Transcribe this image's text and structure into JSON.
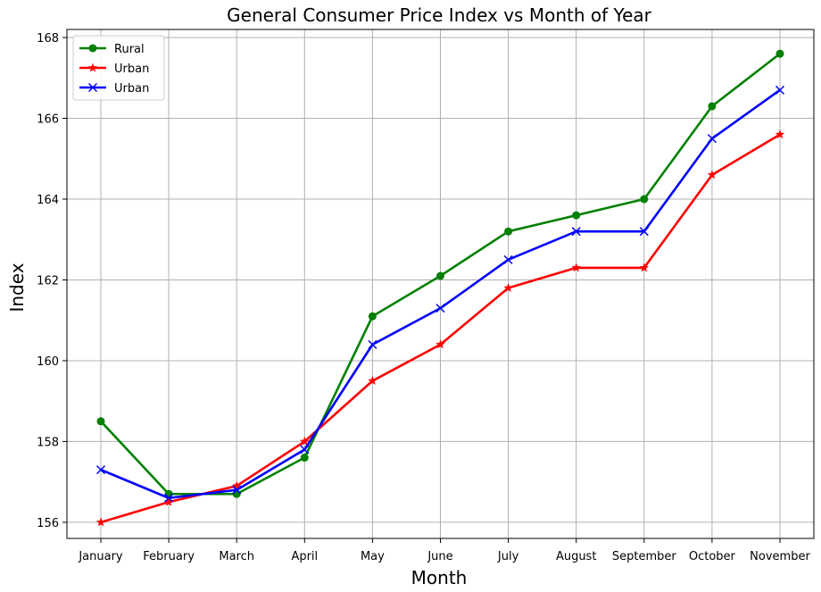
{
  "chart_data": {
    "type": "line",
    "title": "General Consumer Price Index vs Month of Year",
    "xlabel": "Month",
    "ylabel": "Index",
    "categories": [
      "January",
      "February",
      "March",
      "April",
      "May",
      "June",
      "July",
      "August",
      "September",
      "October",
      "November"
    ],
    "ylim": [
      155.6,
      168.2
    ],
    "yticks": [
      156,
      158,
      160,
      162,
      164,
      166,
      168
    ],
    "grid": true,
    "legend_position": "upper-left",
    "series": [
      {
        "name": "Rural",
        "color": "#008000",
        "marker": "circle",
        "values": [
          158.5,
          156.7,
          156.7,
          157.6,
          161.1,
          162.1,
          163.2,
          163.6,
          164.0,
          166.3,
          167.6
        ]
      },
      {
        "name": "Urban",
        "color": "#ff0000",
        "marker": "star",
        "values": [
          156.0,
          156.5,
          156.9,
          158.0,
          159.5,
          160.4,
          161.8,
          162.3,
          162.3,
          164.6,
          165.6
        ]
      },
      {
        "name": "Urban",
        "color": "#0000ff",
        "marker": "x",
        "values": [
          157.3,
          156.6,
          156.8,
          157.8,
          160.4,
          161.3,
          162.5,
          163.2,
          163.2,
          165.5,
          166.7
        ]
      }
    ]
  }
}
